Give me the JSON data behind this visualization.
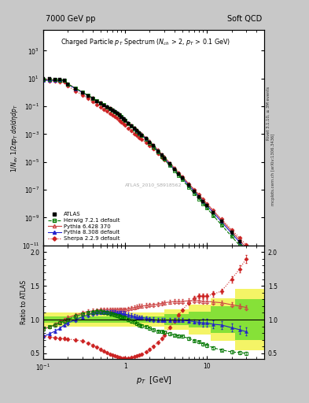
{
  "title_left": "7000 GeV pp",
  "title_right": "Soft QCD",
  "plot_title": "Charged Particle $p_T$ Spectrum ($N_{ch}$ > 2, $p_T$ > 0.1 GeV)",
  "ylabel_main": "$1/N_{ev}$ $1/2\\pi p_T$ $d\\sigma/d\\eta dp_T$",
  "ylabel_ratio": "Ratio to ATLAS",
  "xlabel": "$p_T$  [GeV]",
  "xlim": [
    0.1,
    50
  ],
  "ylim_main_lo": 1e-11,
  "ylim_main_hi": 30000.0,
  "ylim_ratio_lo": 0.42,
  "ylim_ratio_hi": 2.1,
  "watermark": "ATLAS_2010_S8918562",
  "right_label1": "Rivet 3.1.10, ≥ 3M events",
  "right_label2": "mcplots.cern.ch [arXiv:1306.3436]",
  "bg_color": "#ffffff",
  "outer_bg": "#c8c8c8",
  "herwig_color": "#007700",
  "py6_color": "#cc4444",
  "py8_color": "#2222cc",
  "sherpa_color": "#cc2222",
  "atlas_color": "#000000",
  "pt_data": [
    0.1,
    0.12,
    0.14,
    0.16,
    0.18,
    0.2,
    0.25,
    0.3,
    0.35,
    0.4,
    0.45,
    0.5,
    0.55,
    0.6,
    0.65,
    0.7,
    0.75,
    0.8,
    0.85,
    0.9,
    0.95,
    1.0,
    1.1,
    1.2,
    1.3,
    1.4,
    1.5,
    1.6,
    1.8,
    2.0,
    2.2,
    2.5,
    2.8,
    3.0,
    3.5,
    4.0,
    4.5,
    5.0,
    6.0,
    7.0,
    8.0,
    9.0,
    10.0,
    12.0,
    15.0,
    20.0,
    25.0,
    30.0
  ],
  "herwig_ratio": [
    0.86,
    0.89,
    0.92,
    0.95,
    0.98,
    1.0,
    1.05,
    1.08,
    1.1,
    1.11,
    1.12,
    1.12,
    1.11,
    1.1,
    1.09,
    1.08,
    1.07,
    1.06,
    1.05,
    1.04,
    1.03,
    1.02,
    1.0,
    0.98,
    0.96,
    0.94,
    0.92,
    0.91,
    0.89,
    0.87,
    0.85,
    0.83,
    0.82,
    0.81,
    0.79,
    0.77,
    0.76,
    0.75,
    0.72,
    0.69,
    0.67,
    0.64,
    0.62,
    0.58,
    0.55,
    0.52,
    0.51,
    0.5
  ],
  "py6_ratio": [
    0.86,
    0.89,
    0.93,
    0.97,
    1.0,
    1.03,
    1.07,
    1.1,
    1.12,
    1.13,
    1.14,
    1.15,
    1.15,
    1.15,
    1.15,
    1.15,
    1.15,
    1.15,
    1.15,
    1.15,
    1.15,
    1.15,
    1.16,
    1.17,
    1.18,
    1.19,
    1.2,
    1.2,
    1.21,
    1.22,
    1.22,
    1.23,
    1.24,
    1.25,
    1.26,
    1.27,
    1.27,
    1.27,
    1.28,
    1.28,
    1.28,
    1.27,
    1.27,
    1.26,
    1.25,
    1.22,
    1.2,
    1.18
  ],
  "py8_ratio": [
    0.75,
    0.79,
    0.83,
    0.87,
    0.92,
    0.95,
    1.0,
    1.04,
    1.07,
    1.09,
    1.1,
    1.11,
    1.11,
    1.11,
    1.11,
    1.11,
    1.11,
    1.1,
    1.1,
    1.09,
    1.09,
    1.08,
    1.07,
    1.06,
    1.05,
    1.04,
    1.03,
    1.03,
    1.02,
    1.01,
    1.0,
    0.99,
    0.99,
    0.99,
    0.99,
    0.99,
    0.99,
    0.99,
    0.98,
    0.97,
    0.96,
    0.95,
    0.95,
    0.93,
    0.92,
    0.88,
    0.85,
    0.82
  ],
  "sherpa_ratio": [
    0.75,
    0.74,
    0.73,
    0.72,
    0.72,
    0.71,
    0.7,
    0.68,
    0.65,
    0.62,
    0.59,
    0.56,
    0.53,
    0.51,
    0.49,
    0.47,
    0.46,
    0.45,
    0.44,
    0.43,
    0.43,
    0.43,
    0.43,
    0.44,
    0.45,
    0.46,
    0.47,
    0.49,
    0.52,
    0.56,
    0.6,
    0.66,
    0.72,
    0.77,
    0.88,
    0.98,
    1.07,
    1.14,
    1.25,
    1.32,
    1.35,
    1.35,
    1.35,
    1.38,
    1.42,
    1.6,
    1.75,
    1.9
  ],
  "band_green_lo": 0.95,
  "band_green_hi": 1.05,
  "band_yellow_lo": 0.9,
  "band_yellow_hi": 1.1,
  "band_steps_x": [
    0.1,
    3.0,
    6.0,
    11.0,
    22.0,
    50.0
  ],
  "band_yellow_los": [
    0.9,
    0.85,
    0.78,
    0.68,
    0.55,
    0.45
  ],
  "band_yellow_his": [
    1.1,
    1.15,
    1.22,
    1.32,
    1.45,
    1.55
  ],
  "band_green_los": [
    0.95,
    0.92,
    0.88,
    0.8,
    0.7,
    0.6
  ],
  "band_green_his": [
    1.05,
    1.08,
    1.12,
    1.2,
    1.3,
    1.4
  ]
}
